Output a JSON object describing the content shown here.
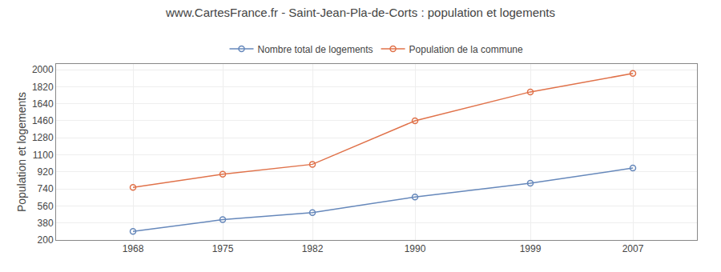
{
  "chart_data": {
    "type": "line",
    "title": "www.CartesFrance.fr - Saint-Jean-Pla-de-Corts : population et logements",
    "ylabel": "Population et logements",
    "x": [
      1968,
      1975,
      1982,
      1990,
      1999,
      2007
    ],
    "series": [
      {
        "name": "Nombre total de logements",
        "color": "#6688bb",
        "marker": "circle-open",
        "values": [
          290,
          415,
          490,
          655,
          800,
          960
        ]
      },
      {
        "name": "Population de la commune",
        "color": "#e0724a",
        "marker": "circle-open",
        "values": [
          755,
          895,
          1000,
          1460,
          1765,
          1960
        ]
      }
    ],
    "xlim": [
      1962,
      2012
    ],
    "xticks": [
      1968,
      1975,
      1982,
      1990,
      1999,
      2007
    ],
    "ylim": [
      200,
      2060
    ],
    "yticks": [
      200,
      380,
      560,
      740,
      920,
      1100,
      1280,
      1460,
      1640,
      1820,
      2000
    ],
    "grid": true,
    "legend": "top"
  }
}
